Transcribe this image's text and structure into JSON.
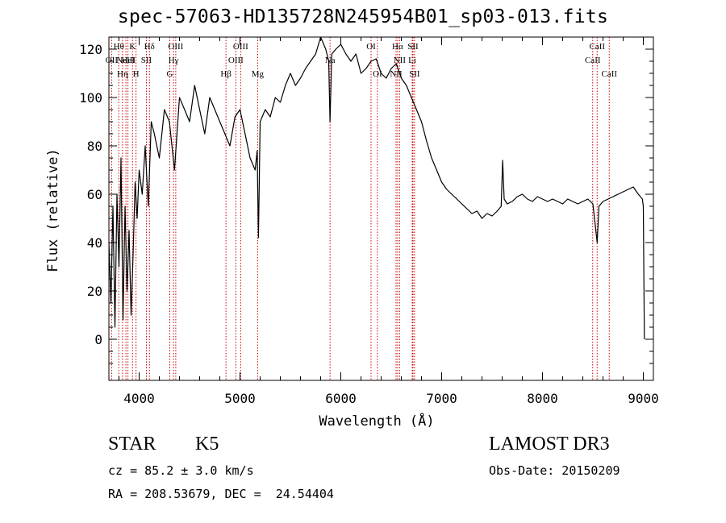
{
  "header": {
    "title": "spec-57063-HD135728N245954B01_sp03-013.fits"
  },
  "info": {
    "object_class": "STAR",
    "subclass": "K5",
    "survey": "LAMOST DR3",
    "cz": "cz = 85.2 ± 3.0 km/s",
    "obs_date": "Obs-Date: 20150209",
    "radec": "RA = 208.53679, DEC =  24.54404"
  },
  "colors": {
    "line": "#000000",
    "marker": "#cc0000",
    "background": "#ffffff"
  },
  "chart_data": {
    "type": "line",
    "title": "spec-57063-HD135728N245954B01_sp03-013.fits",
    "xlabel": "Wavelength (Å)",
    "ylabel": "Flux (relative)",
    "xlim": [
      3700,
      9100
    ],
    "ylim": [
      -17,
      125
    ],
    "xticks": [
      4000,
      5000,
      6000,
      7000,
      8000,
      9000
    ],
    "yticks": [
      0,
      20,
      40,
      60,
      80,
      100,
      120
    ],
    "grid": false,
    "legend": "none",
    "series": [
      {
        "x": [
          3700,
          3720,
          3740,
          3760,
          3780,
          3800,
          3820,
          3840,
          3860,
          3880,
          3900,
          3920,
          3940,
          3960,
          3980,
          4000,
          4030,
          4060,
          4090,
          4120,
          4150,
          4200,
          4250,
          4300,
          4350,
          4400,
          4450,
          4500,
          4550,
          4600,
          4650,
          4700,
          4750,
          4800,
          4850,
          4900,
          4950,
          5000,
          5050,
          5100,
          5150,
          5170,
          5183,
          5200,
          5250,
          5300,
          5350,
          5400,
          5450,
          5500,
          5550,
          5600,
          5650,
          5700,
          5750,
          5800,
          5850,
          5880,
          5893,
          5910,
          5950,
          6000,
          6050,
          6100,
          6150,
          6200,
          6250,
          6300,
          6350,
          6400,
          6450,
          6500,
          6550,
          6600,
          6650,
          6700,
          6750,
          6800,
          6850,
          6900,
          6950,
          7000,
          7050,
          7100,
          7150,
          7200,
          7250,
          7300,
          7350,
          7400,
          7450,
          7500,
          7550,
          7590,
          7605,
          7620,
          7650,
          7700,
          7750,
          7800,
          7850,
          7900,
          7950,
          8000,
          8050,
          8100,
          8150,
          8200,
          8250,
          8300,
          8350,
          8400,
          8450,
          8500,
          8542,
          8560,
          8600,
          8650,
          8700,
          8750,
          8800,
          8850,
          8900,
          8950,
          8990,
          9000,
          9010
        ],
        "y": [
          40,
          15,
          55,
          5,
          60,
          30,
          75,
          8,
          55,
          20,
          45,
          10,
          35,
          65,
          50,
          70,
          60,
          80,
          55,
          90,
          85,
          75,
          95,
          90,
          70,
          100,
          95,
          90,
          105,
          95,
          85,
          100,
          95,
          90,
          85,
          80,
          92,
          95,
          85,
          75,
          70,
          78,
          42,
          90,
          95,
          92,
          100,
          98,
          105,
          110,
          105,
          108,
          112,
          115,
          118,
          125,
          120,
          115,
          90,
          118,
          120,
          122,
          118,
          115,
          118,
          110,
          112,
          115,
          116,
          110,
          108,
          112,
          114,
          108,
          105,
          100,
          95,
          90,
          82,
          75,
          70,
          65,
          62,
          60,
          58,
          56,
          54,
          52,
          53,
          50,
          52,
          51,
          53,
          55,
          74,
          58,
          56,
          57,
          59,
          60,
          58,
          57,
          59,
          58,
          57,
          58,
          57,
          56,
          58,
          57,
          56,
          57,
          58,
          56,
          40,
          55,
          57,
          58,
          59,
          60,
          61,
          62,
          63,
          60,
          58,
          55,
          0
        ]
      }
    ],
    "line_markers": [
      {
        "wl": 3727,
        "label": "OII",
        "row": 1
      },
      {
        "wl": 3798,
        "label": "Hθ",
        "row": 0
      },
      {
        "wl": 3835,
        "label": "Hη",
        "row": 2
      },
      {
        "wl": 3869,
        "label": "NeIII",
        "row": 1
      },
      {
        "wl": 3889,
        "label": "HeI",
        "row": 1
      },
      {
        "wl": 3934,
        "label": "K",
        "row": 0
      },
      {
        "wl": 3969,
        "label": "H",
        "row": 2
      },
      {
        "wl": 4072,
        "label": "SII",
        "row": 1
      },
      {
        "wl": 4102,
        "label": "Hδ",
        "row": 0
      },
      {
        "wl": 4304,
        "label": "G",
        "row": 2
      },
      {
        "wl": 4341,
        "label": "Hγ",
        "row": 1
      },
      {
        "wl": 4363,
        "label": "OIII",
        "row": 0
      },
      {
        "wl": 4861,
        "label": "Hβ",
        "row": 2
      },
      {
        "wl": 4959,
        "label": "OIII",
        "row": 1
      },
      {
        "wl": 5007,
        "label": "OIII",
        "row": 0
      },
      {
        "wl": 5175,
        "label": "Mg",
        "row": 2
      },
      {
        "wl": 5893,
        "label": "Na",
        "row": 1
      },
      {
        "wl": 6300,
        "label": "OI",
        "row": 0
      },
      {
        "wl": 6363,
        "label": "OI",
        "row": 2
      },
      {
        "wl": 6548,
        "label": "NII",
        "row": 2
      },
      {
        "wl": 6563,
        "label": "Hα",
        "row": 0
      },
      {
        "wl": 6583,
        "label": "NII",
        "row": 1
      },
      {
        "wl": 6708,
        "label": "Li",
        "row": 1
      },
      {
        "wl": 6716,
        "label": "SII",
        "row": 0
      },
      {
        "wl": 6731,
        "label": "SII",
        "row": 2
      },
      {
        "wl": 8498,
        "label": "CaII",
        "row": 1
      },
      {
        "wl": 8542,
        "label": "CaII",
        "row": 0
      },
      {
        "wl": 8662,
        "label": "CaII",
        "row": 2
      }
    ]
  }
}
